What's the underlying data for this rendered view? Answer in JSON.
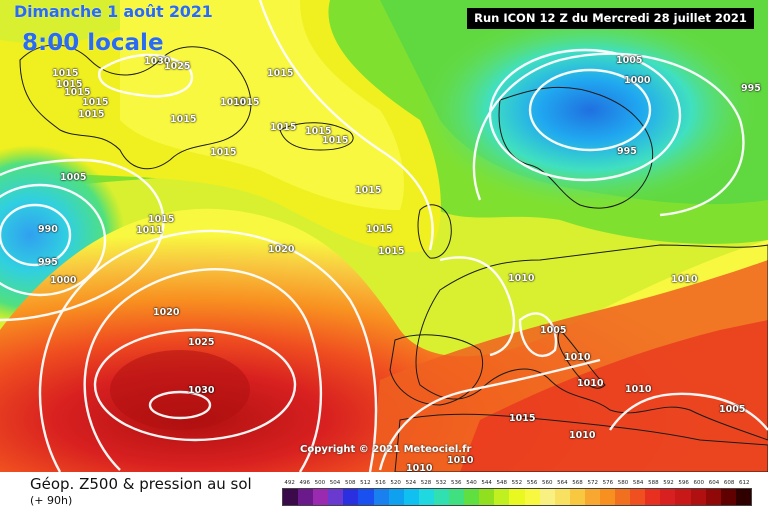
{
  "header": {
    "date": "Dimanche 1 août 2021",
    "time": "8:00 locale",
    "run": "Run ICON 12 Z du Mercredi 28 juillet 2021"
  },
  "copyright": "Copyright © 2021 Meteociel.fr",
  "footer": {
    "product": "Géop. Z500 & pression au sol",
    "forecast": "(+ 90h)"
  },
  "scale": {
    "labels": [
      "492",
      "496",
      "500",
      "504",
      "508",
      "512",
      "516",
      "520",
      "524",
      "528",
      "532",
      "536",
      "540",
      "544",
      "548",
      "552",
      "556",
      "560",
      "564",
      "568",
      "572",
      "576",
      "580",
      "584",
      "588",
      "592",
      "596",
      "600",
      "604",
      "608",
      "612"
    ],
    "colors": [
      "#3a0a4a",
      "#6a1a8a",
      "#9a2ab0",
      "#6a3ad0",
      "#2a30e0",
      "#1a50f0",
      "#1a80f0",
      "#10a0f0",
      "#10c0f0",
      "#20d8e0",
      "#30e0b0",
      "#40e080",
      "#60e040",
      "#90e020",
      "#c0f020",
      "#e8f820",
      "#f8f840",
      "#f8f080",
      "#f8e060",
      "#f8c840",
      "#f8a830",
      "#f89020",
      "#f07020",
      "#f05020",
      "#e83020",
      "#d82020",
      "#c81818",
      "#b01010",
      "#900808",
      "#600000",
      "#300000"
    ]
  },
  "pressure_labels": [
    "1015",
    "1015",
    "1015",
    "1015",
    "1015",
    "1030",
    "1025",
    "1015",
    "1015",
    "1015",
    "1015",
    "1015",
    "1015",
    "1015",
    "1015",
    "1015",
    "1005",
    "990",
    "995",
    "1000",
    "1015",
    "1011",
    "1020",
    "1020",
    "1025",
    "1030",
    "1015",
    "1005",
    "1000",
    "995",
    "995",
    "1010",
    "1010",
    "1005",
    "1010",
    "1010",
    "1010",
    "1005",
    "1015",
    "1010",
    "1010",
    "1010",
    "1015"
  ],
  "icons": {
    "map": "weather-map"
  },
  "colors": {
    "header_text": "#2a6cf0",
    "isobar": "#ffffff",
    "coast": "#1a1a1a"
  }
}
